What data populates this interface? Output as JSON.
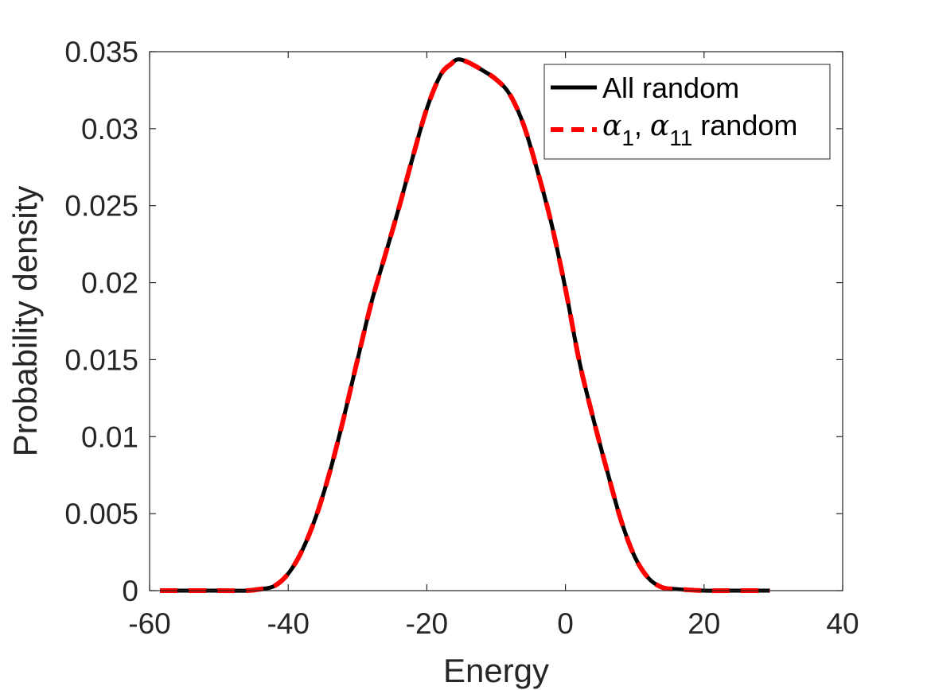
{
  "chart_data": {
    "type": "line",
    "xlabel": "Energy",
    "ylabel": "Probability density",
    "xlim": [
      -60,
      40
    ],
    "ylim": [
      0,
      0.035
    ],
    "xticks": [
      -60,
      -40,
      -20,
      0,
      20,
      40
    ],
    "xtick_labels": [
      "-60",
      "-40",
      "-20",
      "0",
      "20",
      "40"
    ],
    "yticks": [
      0,
      0.005,
      0.01,
      0.015,
      0.02,
      0.025,
      0.03,
      0.035
    ],
    "ytick_labels": [
      "0",
      "0.005",
      "0.01",
      "0.015",
      "0.02",
      "0.025",
      "0.03",
      "0.035"
    ],
    "grid": false,
    "legend_position": "top-right",
    "legend": {
      "entry1": "All random",
      "entry2": {
        "sym": "α",
        "sub1": "1",
        "sep": ", ",
        "sub2": "11",
        "rest": " random"
      }
    },
    "x": [
      -58.5,
      -55,
      -50,
      -46,
      -44,
      -42,
      -40,
      -38,
      -36,
      -34,
      -32,
      -30,
      -28,
      -26,
      -24,
      -22,
      -20,
      -18,
      -16.5,
      -15.5,
      -14,
      -12,
      -10,
      -8,
      -6,
      -4,
      -2,
      0,
      2,
      4,
      6,
      8,
      10,
      12,
      14,
      16,
      20,
      24,
      29.5
    ],
    "series": [
      {
        "color": "#000000",
        "style": "solid",
        "values": [
          0,
          0,
          0,
          0,
          0.0001,
          0.0003,
          0.0011,
          0.0026,
          0.0048,
          0.0077,
          0.0112,
          0.015,
          0.0187,
          0.0218,
          0.0249,
          0.0282,
          0.0313,
          0.0335,
          0.0342,
          0.0345,
          0.0343,
          0.0338,
          0.0332,
          0.0322,
          0.0302,
          0.0272,
          0.0238,
          0.0196,
          0.0149,
          0.0112,
          0.0078,
          0.0046,
          0.0022,
          0.0008,
          0.0002,
          0.0001,
          0,
          0,
          0
        ]
      },
      {
        "color": "#ff0000",
        "style": "dashed",
        "values": [
          0,
          0,
          0,
          0,
          0.0001,
          0.0003,
          0.0011,
          0.0026,
          0.0048,
          0.0077,
          0.0112,
          0.015,
          0.0187,
          0.0218,
          0.0249,
          0.0282,
          0.0313,
          0.0335,
          0.0342,
          0.0345,
          0.0343,
          0.0338,
          0.0332,
          0.0322,
          0.0302,
          0.0272,
          0.0238,
          0.0196,
          0.0149,
          0.0112,
          0.0078,
          0.0046,
          0.0022,
          0.0008,
          0.0002,
          0.0001,
          0,
          0,
          0
        ]
      }
    ]
  }
}
